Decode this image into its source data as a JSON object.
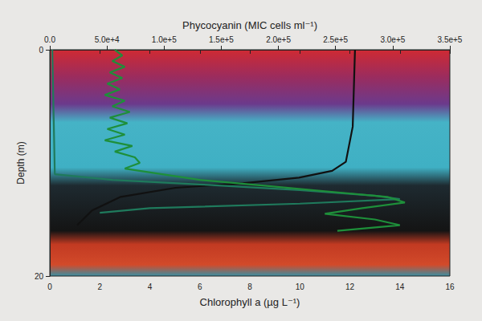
{
  "chart_data": {
    "type": "line",
    "x_label": "Chlorophyll a (µg L⁻¹)",
    "x2_label": "Phycocyanin (MIC cells ml⁻¹)",
    "y_label": "Depth (m)",
    "xlim": [
      0,
      16
    ],
    "xticks": [
      0,
      2,
      4,
      6,
      8,
      10,
      12,
      14,
      16
    ],
    "x2lim": [
      0,
      350000
    ],
    "x2ticks": [
      {
        "value": 0,
        "label": "0.0"
      },
      {
        "value": 50000,
        "label": "5.0e+4"
      },
      {
        "value": 100000,
        "label": "1.0e+5"
      },
      {
        "value": 150000,
        "label": "1.5e+5"
      },
      {
        "value": 200000,
        "label": "2.0e+5"
      },
      {
        "value": 250000,
        "label": "2.5e+5"
      },
      {
        "value": 300000,
        "label": "3.0e+5"
      },
      {
        "value": 350000,
        "label": "3.5e+5"
      }
    ],
    "ylim": [
      0,
      20
    ],
    "yticks": [
      0,
      20
    ],
    "grid": false,
    "series": [
      {
        "color": "#111111",
        "axis": "x2",
        "x": [
          267000,
          265000,
          259000,
          247000,
          218000,
          169000,
          110000,
          62000,
          37000,
          24000
        ],
        "y": [
          0,
          6.8,
          9.9,
          10.7,
          11.3,
          11.8,
          12.2,
          13.0,
          14.2,
          15.5
        ]
      },
      {
        "color": "#1f7a5c",
        "axis": "x",
        "x": [
          0.1,
          0.2,
          2.5,
          6,
          10,
          13,
          14,
          10,
          4,
          2
        ],
        "y": [
          0,
          11.0,
          11.5,
          11.9,
          12.4,
          12.9,
          13.2,
          13.6,
          14.0,
          14.4
        ]
      },
      {
        "color": "#1e8f3a",
        "axis": "x",
        "x": [
          2.6,
          2.9,
          2.5,
          3.0,
          2.4,
          2.9,
          2.3,
          2.8,
          2.2,
          3.0,
          2.5,
          3.2,
          2.4,
          3.1,
          2.3,
          3.0,
          2.2,
          3.3,
          2.6,
          3.4,
          3.6,
          3.0,
          4.5,
          6.0,
          8.5,
          11,
          13.5,
          14.2,
          12.5,
          11.0,
          13.0,
          14.0,
          11.5
        ],
        "y": [
          0,
          0.5,
          1,
          1.5,
          2,
          2.5,
          3,
          3.5,
          4,
          4.5,
          5,
          5.5,
          6,
          6.5,
          7,
          7.5,
          8,
          8.5,
          9,
          9.5,
          10,
          10.5,
          11,
          11.5,
          12,
          12.5,
          13,
          13.5,
          14,
          14.5,
          15,
          15.5,
          16
        ]
      }
    ]
  }
}
